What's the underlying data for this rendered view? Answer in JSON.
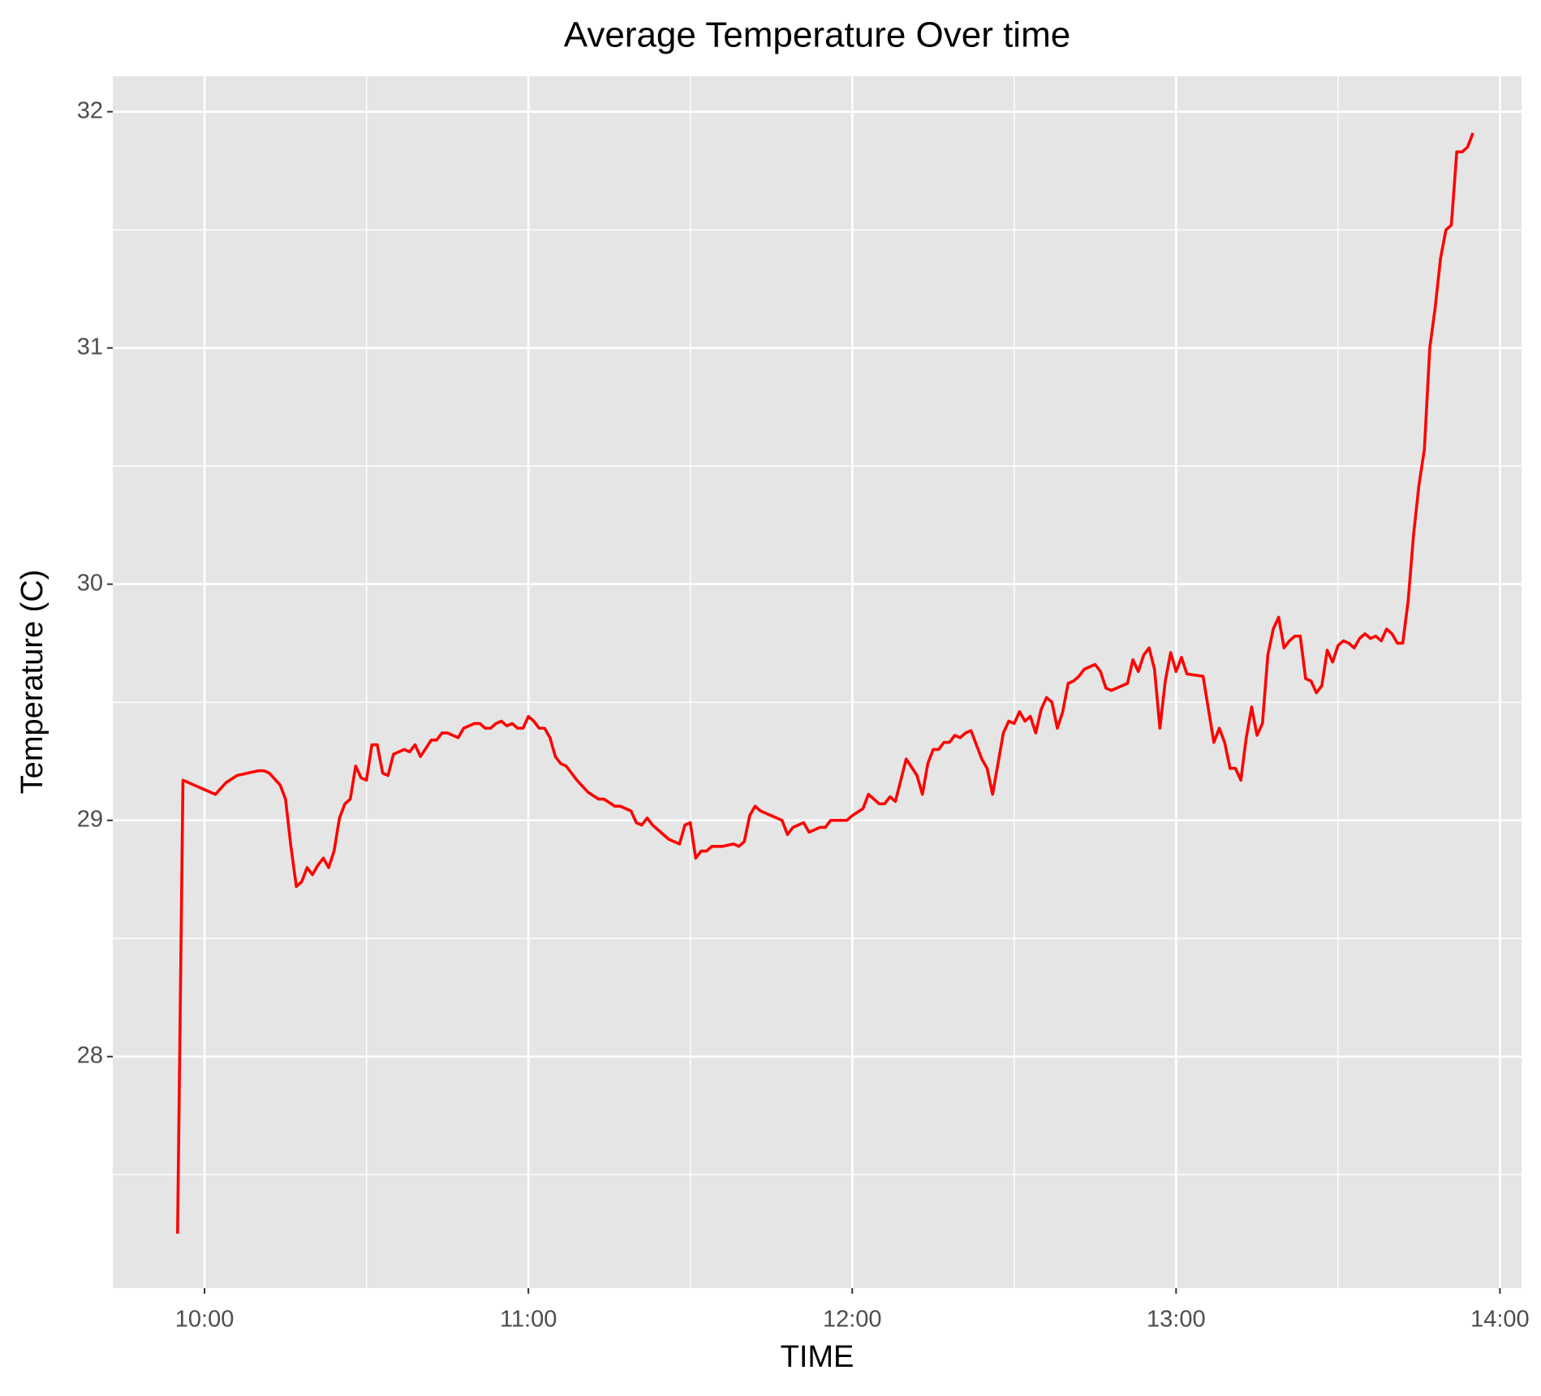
{
  "chart_data": {
    "type": "line",
    "title": "Average Temperature Over time",
    "x_label": "TIME",
    "y_label": "Temperature (C)",
    "xlim": [
      "09:43",
      "14:04"
    ],
    "xticks": [
      "10:00",
      "11:00",
      "12:00",
      "13:00",
      "14:00"
    ],
    "ylim": [
      27.02,
      32.15
    ],
    "yticks": [
      28,
      29,
      30,
      31,
      32
    ],
    "grid": true,
    "x": [
      "09:55",
      "09:56",
      "09:59",
      "10:00",
      "10:02",
      "10:04",
      "10:06",
      "10:08",
      "10:10",
      "10:11",
      "10:12",
      "10:14",
      "10:15",
      "10:16",
      "10:17",
      "10:18",
      "10:19",
      "10:20",
      "10:21",
      "10:22",
      "10:23",
      "10:24",
      "10:25",
      "10:26",
      "10:27",
      "10:28",
      "10:29",
      "10:30",
      "10:31",
      "10:32",
      "10:33",
      "10:34",
      "10:35",
      "10:36",
      "10:37",
      "10:38",
      "10:39",
      "10:40",
      "10:42",
      "10:43",
      "10:44",
      "10:45",
      "10:46",
      "10:47",
      "10:48",
      "10:50",
      "10:51",
      "10:52",
      "10:53",
      "10:54",
      "10:55",
      "10:56",
      "10:57",
      "10:58",
      "10:59",
      "11:00",
      "11:01",
      "11:02",
      "11:03",
      "11:04",
      "11:05",
      "11:06",
      "11:07",
      "11:09",
      "11:11",
      "11:13",
      "11:14",
      "11:16",
      "11:17",
      "11:19",
      "11:20",
      "11:21",
      "11:22",
      "11:23",
      "11:26",
      "11:28",
      "11:29",
      "11:30",
      "11:31",
      "11:32",
      "11:33",
      "11:34",
      "11:36",
      "11:38",
      "11:39",
      "11:40",
      "11:41",
      "11:42",
      "11:43",
      "11:45",
      "11:47",
      "11:48",
      "11:49",
      "11:50",
      "11:51",
      "11:52",
      "11:54",
      "11:55",
      "11:56",
      "11:57",
      "11:59",
      "12:00",
      "12:02",
      "12:03",
      "12:05",
      "12:06",
      "12:07",
      "12:08",
      "12:10",
      "12:12",
      "12:13",
      "12:14",
      "12:15",
      "12:16",
      "12:17",
      "12:18",
      "12:19",
      "12:20",
      "12:21",
      "12:22",
      "12:24",
      "12:25",
      "12:26",
      "12:28",
      "12:29",
      "12:30",
      "12:31",
      "12:32",
      "12:33",
      "12:34",
      "12:35",
      "12:36",
      "12:37",
      "12:38",
      "12:39",
      "12:40",
      "12:41",
      "12:42",
      "12:43",
      "12:44",
      "12:45",
      "12:46",
      "12:47",
      "12:48",
      "12:50",
      "12:51",
      "12:52",
      "12:53",
      "12:54",
      "12:55",
      "12:56",
      "12:57",
      "12:58",
      "12:59",
      "13:00",
      "13:01",
      "13:02",
      "13:05",
      "13:07",
      "13:08",
      "13:09",
      "13:10",
      "13:11",
      "13:12",
      "13:13",
      "13:14",
      "13:15",
      "13:16",
      "13:17",
      "13:18",
      "13:19",
      "13:20",
      "13:21",
      "13:22",
      "13:23",
      "13:24",
      "13:25",
      "13:26",
      "13:27",
      "13:28",
      "13:29",
      "13:30",
      "13:31",
      "13:32",
      "13:33",
      "13:34",
      "13:35",
      "13:36",
      "13:37",
      "13:38",
      "13:39",
      "13:40",
      "13:41",
      "13:42",
      "13:43",
      "13:44",
      "13:45",
      "13:46",
      "13:47",
      "13:48",
      "13:49",
      "13:50",
      "13:51",
      "13:52",
      "13:53",
      "13:54",
      "13:55"
    ],
    "series": [
      {
        "name": "Temperature",
        "color": "#ff0000",
        "values": [
          27.25,
          29.17,
          29.14,
          29.13,
          29.11,
          29.16,
          29.19,
          29.2,
          29.21,
          29.21,
          29.2,
          29.15,
          29.09,
          28.89,
          28.72,
          28.74,
          28.8,
          28.77,
          28.81,
          28.84,
          28.8,
          28.87,
          29.01,
          29.07,
          29.09,
          29.23,
          29.18,
          29.17,
          29.32,
          29.32,
          29.2,
          29.19,
          29.28,
          29.29,
          29.3,
          29.29,
          29.32,
          29.27,
          29.34,
          29.34,
          29.37,
          29.37,
          29.36,
          29.35,
          29.39,
          29.41,
          29.41,
          29.39,
          29.39,
          29.41,
          29.42,
          29.4,
          29.41,
          29.39,
          29.39,
          29.44,
          29.42,
          29.39,
          29.39,
          29.35,
          29.27,
          29.24,
          29.23,
          29.17,
          29.12,
          29.09,
          29.09,
          29.06,
          29.06,
          29.04,
          28.99,
          28.98,
          29.01,
          28.98,
          28.92,
          28.9,
          28.98,
          28.99,
          28.84,
          28.87,
          28.87,
          28.89,
          28.89,
          28.9,
          28.89,
          28.91,
          29.02,
          29.06,
          29.04,
          29.02,
          29.0,
          28.94,
          28.97,
          28.98,
          28.99,
          28.95,
          28.97,
          28.97,
          29.0,
          29.0,
          29.0,
          29.02,
          29.05,
          29.11,
          29.07,
          29.07,
          29.1,
          29.08,
          29.26,
          29.19,
          29.11,
          29.24,
          29.3,
          29.3,
          29.33,
          29.33,
          29.36,
          29.35,
          29.37,
          29.38,
          29.26,
          29.22,
          29.11,
          29.37,
          29.42,
          29.41,
          29.46,
          29.42,
          29.44,
          29.37,
          29.47,
          29.52,
          29.5,
          29.39,
          29.46,
          29.58,
          29.59,
          29.61,
          29.64,
          29.65,
          29.66,
          29.63,
          29.56,
          29.55,
          29.57,
          29.58,
          29.68,
          29.63,
          29.7,
          29.73,
          29.64,
          29.39,
          29.59,
          29.71,
          29.63,
          29.69,
          29.62,
          29.61,
          29.33,
          29.39,
          29.33,
          29.22,
          29.22,
          29.17,
          29.35,
          29.48,
          29.36,
          29.41,
          29.7,
          29.81,
          29.86,
          29.73,
          29.76,
          29.78,
          29.78,
          29.6,
          29.59,
          29.54,
          29.57,
          29.72,
          29.67,
          29.74,
          29.76,
          29.75,
          29.73,
          29.77,
          29.79,
          29.77,
          29.78,
          29.76,
          29.81,
          29.79,
          29.75,
          29.75,
          29.93,
          30.21,
          30.42,
          30.57,
          31.0,
          31.17,
          31.38,
          31.5,
          31.52,
          31.83,
          31.83,
          31.85,
          31.91
        ]
      }
    ]
  }
}
